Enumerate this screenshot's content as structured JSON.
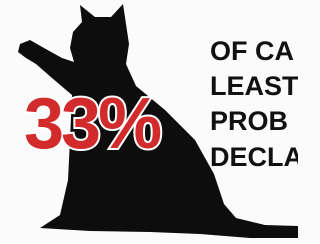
{
  "stat": "33%",
  "lines": [
    "OF CA",
    "LEAST",
    "PROB",
    "DECLA"
  ]
}
